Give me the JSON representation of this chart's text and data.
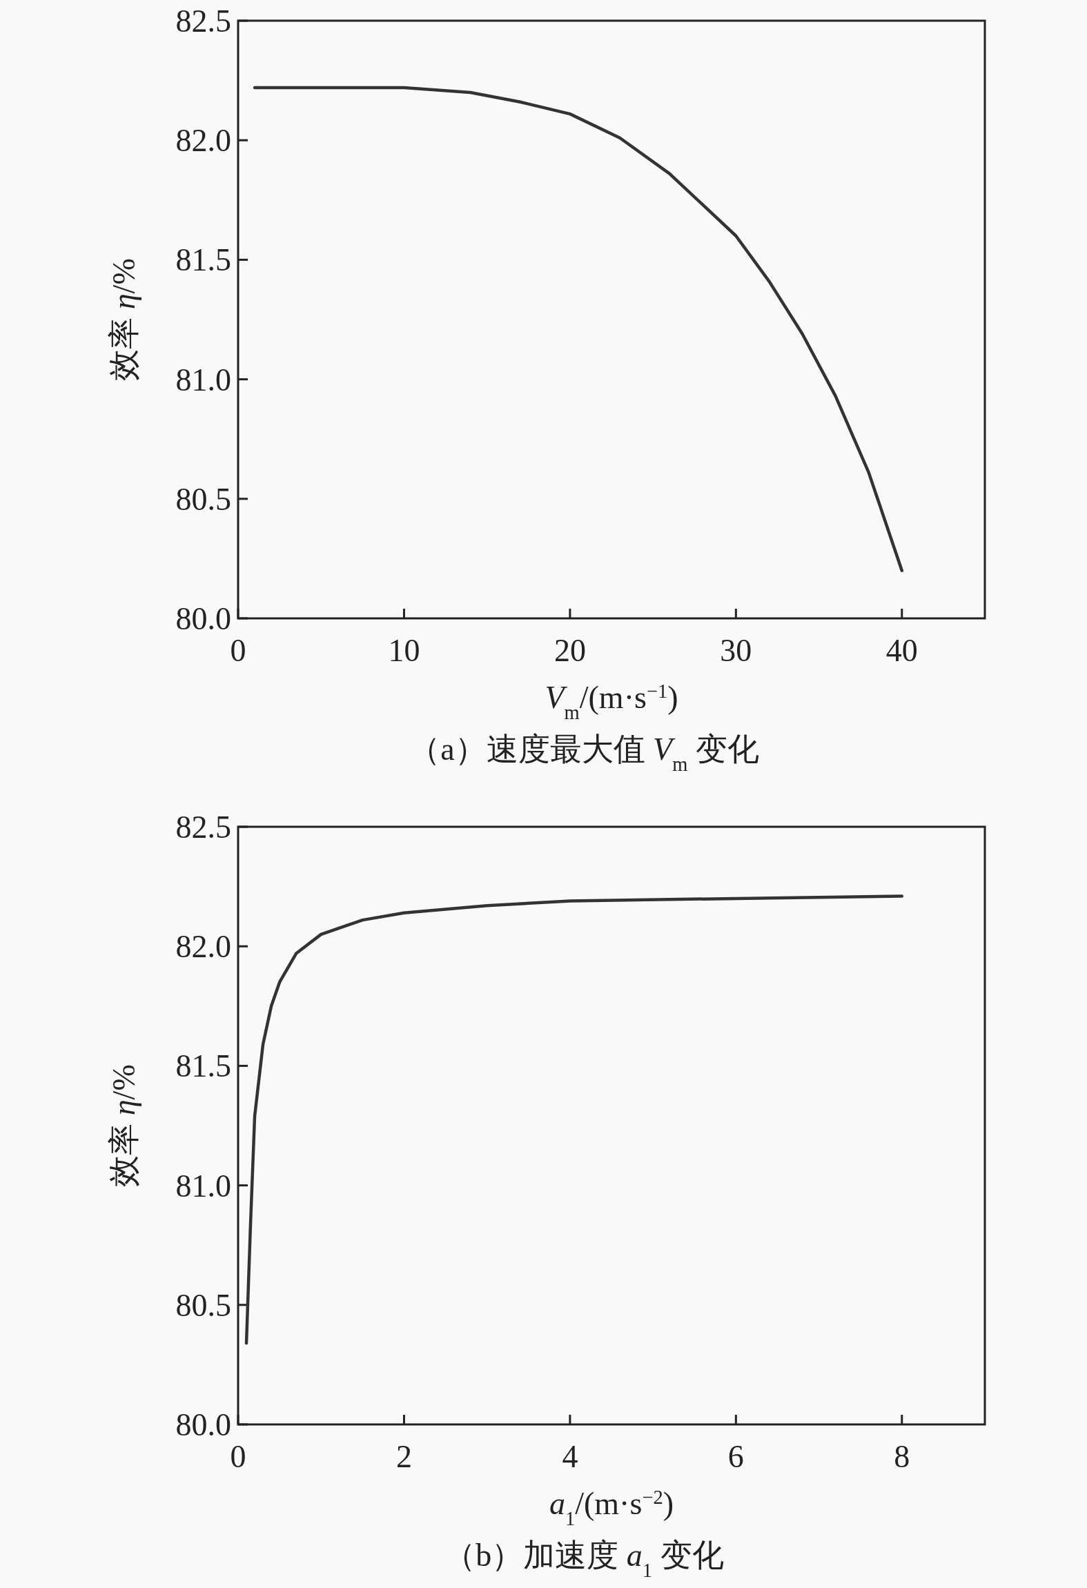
{
  "chart_data": [
    {
      "type": "line",
      "title": "（a）速度最大值 *V*$_{m}$ 变化",
      "xlabel": "*V*$_{m}$/(m·s$^{−1}$)",
      "ylabel": "效率 *η*/%",
      "x": [
        1,
        5,
        10,
        14,
        17,
        20,
        23,
        26,
        28,
        30,
        32,
        34,
        36,
        38,
        40
      ],
      "series": [
        {
          "color": "#333333",
          "values": [
            82.22,
            82.22,
            82.22,
            82.2,
            82.16,
            82.11,
            82.01,
            81.86,
            81.73,
            81.6,
            81.41,
            81.19,
            80.93,
            80.61,
            80.2
          ]
        }
      ],
      "xlim": [
        0,
        45
      ],
      "ylim": [
        80,
        82.5
      ],
      "xticks": [
        0,
        10,
        20,
        30,
        40
      ],
      "yticks": [
        {
          "value": 80,
          "label": "80.0"
        },
        80.5,
        {
          "value": 81,
          "label": "81.0"
        },
        81.5,
        {
          "value": 82,
          "label": "82.0"
        },
        82.5
      ]
    },
    {
      "type": "line",
      "title": "（b）加速度 *a*$_{1}$ 变化",
      "xlabel": "*a*$_{1}$/(m·s$^{−2}$)",
      "ylabel": "效率 *η*/%",
      "x": [
        0.1,
        0.15,
        0.2,
        0.3,
        0.4,
        0.5,
        0.7,
        1,
        1.5,
        2,
        3,
        4,
        6,
        8
      ],
      "series": [
        {
          "color": "#333333",
          "values": [
            80.34,
            80.84,
            81.29,
            81.59,
            81.75,
            81.85,
            81.97,
            82.05,
            82.11,
            82.14,
            82.17,
            82.19,
            82.2,
            82.21
          ]
        }
      ],
      "xlim": [
        0,
        9
      ],
      "ylim": [
        80,
        82.5
      ],
      "xticks": [
        0,
        2,
        4,
        6,
        8
      ],
      "yticks": [
        {
          "value": 80,
          "label": "80.0"
        },
        80.5,
        {
          "value": 81,
          "label": "81.0"
        },
        81.5,
        {
          "value": 82,
          "label": "82.0"
        },
        82.5
      ]
    }
  ]
}
